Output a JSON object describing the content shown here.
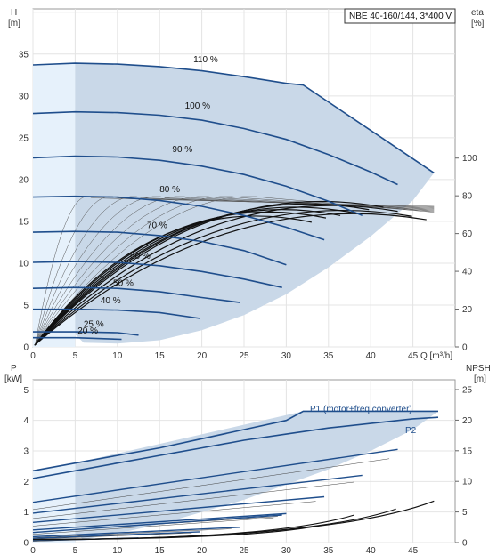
{
  "chart_data": [
    {
      "type": "line",
      "title": "NBE 40-160/144, 3*400 V",
      "y_left_label": "H",
      "y_left_unit": "[m]",
      "y_right_label": "eta",
      "y_right_unit": "[%]",
      "x_label": "Q [m³/h]",
      "x_ticks": [
        "0",
        "5",
        "10",
        "15",
        "20",
        "25",
        "30",
        "35",
        "40",
        "45"
      ],
      "y_left_ticks": [
        "0",
        "5",
        "10",
        "15",
        "20",
        "25",
        "30",
        "35"
      ],
      "y_right_ticks": [
        "0",
        "20",
        "40",
        "60",
        "80",
        "100"
      ],
      "xlim": [
        0,
        50
      ],
      "ylim_left": [
        0,
        40.4
      ],
      "ylim_right": [
        0,
        179
      ],
      "speed_labels": [
        {
          "text": "110 %",
          "x": 19.0,
          "y": 34.0
        },
        {
          "text": "100 %",
          "x": 18.0,
          "y": 28.5
        },
        {
          "text": "90 %",
          "x": 16.5,
          "y": 23.3
        },
        {
          "text": "80 %",
          "x": 15.0,
          "y": 18.5
        },
        {
          "text": "70 %",
          "x": 13.5,
          "y": 14.2
        },
        {
          "text": "60 %",
          "x": 11.5,
          "y": 10.5
        },
        {
          "text": "50 %",
          "x": 9.5,
          "y": 7.3
        },
        {
          "text": "40 %",
          "x": 8.0,
          "y": 5.2
        },
        {
          "text": "25 %",
          "x": 6.0,
          "y": 2.4
        },
        {
          "text": "20 %",
          "x": 5.3,
          "y": 1.6
        }
      ],
      "series": [
        {
          "name": "110 %",
          "x": [
            0,
            5,
            10,
            15,
            20,
            25,
            30,
            32,
            47.5
          ],
          "values": [
            33.7,
            33.9,
            33.8,
            33.5,
            33.0,
            32.3,
            31.5,
            31.3,
            20.8
          ]
        },
        {
          "name": "100 %",
          "x": [
            0,
            5,
            10,
            15,
            20,
            25,
            30,
            35,
            40,
            43.2
          ],
          "values": [
            27.9,
            28.1,
            28.0,
            27.7,
            27.1,
            26.1,
            24.8,
            23.0,
            20.9,
            19.4
          ]
        },
        {
          "name": "90 %",
          "x": [
            0,
            5,
            10,
            15,
            20,
            25,
            30,
            35,
            39
          ],
          "values": [
            22.6,
            22.8,
            22.7,
            22.3,
            21.6,
            20.6,
            19.2,
            17.4,
            15.7
          ]
        },
        {
          "name": "80 %",
          "x": [
            0,
            5,
            10,
            15,
            20,
            25,
            30,
            34.5
          ],
          "values": [
            17.9,
            18.0,
            17.9,
            17.5,
            16.8,
            15.7,
            14.3,
            12.8
          ]
        },
        {
          "name": "70 %",
          "x": [
            0,
            5,
            10,
            15,
            20,
            25,
            30
          ],
          "values": [
            13.7,
            13.8,
            13.7,
            13.3,
            12.6,
            11.5,
            9.8
          ]
        },
        {
          "name": "60 %",
          "x": [
            0,
            5,
            10,
            15,
            20,
            25,
            29.5
          ],
          "values": [
            10.1,
            10.2,
            10.1,
            9.7,
            9.0,
            8.1,
            7.1
          ]
        },
        {
          "name": "50 %",
          "x": [
            0,
            5,
            10,
            15,
            20,
            24.5
          ],
          "values": [
            7.0,
            7.1,
            7.0,
            6.6,
            5.9,
            5.3
          ]
        },
        {
          "name": "40 %",
          "x": [
            0,
            5,
            10,
            15,
            19.8
          ],
          "values": [
            4.5,
            4.5,
            4.4,
            4.1,
            3.4
          ]
        },
        {
          "name": "25 %",
          "x": [
            0,
            5,
            10,
            12.5
          ],
          "values": [
            1.8,
            1.8,
            1.7,
            1.4
          ]
        },
        {
          "name": "20 %",
          "x": [
            0,
            5,
            10.5
          ],
          "values": [
            1.1,
            1.1,
            0.9
          ]
        }
      ]
    },
    {
      "type": "line",
      "y_left_label": "P",
      "y_left_unit": "[kW]",
      "y_right_label": "NPSH",
      "y_right_unit": "[m]",
      "x_ticks": [
        "0",
        "5",
        "10",
        "15",
        "20",
        "25",
        "30",
        "35",
        "40",
        "45"
      ],
      "y_left_ticks": [
        "0",
        "1",
        "2",
        "3",
        "4",
        "5"
      ],
      "y_right_ticks": [
        "0",
        "5",
        "10",
        "15",
        "20",
        "25"
      ],
      "xlim": [
        0,
        50
      ],
      "ylim_left": [
        0,
        5.33
      ],
      "ylim_right": [
        0,
        26.6
      ],
      "series_labels": [
        "P1 (motor+freq.converter)",
        "P2"
      ],
      "series": [
        {
          "name": "P1 (motor+freq.converter)",
          "x": [
            0,
            5,
            10,
            15,
            20,
            25,
            30,
            32,
            48
          ],
          "values": [
            2.35,
            2.6,
            2.85,
            3.1,
            3.4,
            3.7,
            4.0,
            4.3,
            4.3
          ]
        },
        {
          "name": "P2",
          "x": [
            0,
            5,
            10,
            15,
            20,
            25,
            30,
            35,
            40,
            45,
            48
          ],
          "values": [
            2.1,
            2.35,
            2.6,
            2.85,
            3.1,
            3.35,
            3.55,
            3.75,
            3.9,
            4.05,
            4.1
          ]
        }
      ]
    }
  ]
}
